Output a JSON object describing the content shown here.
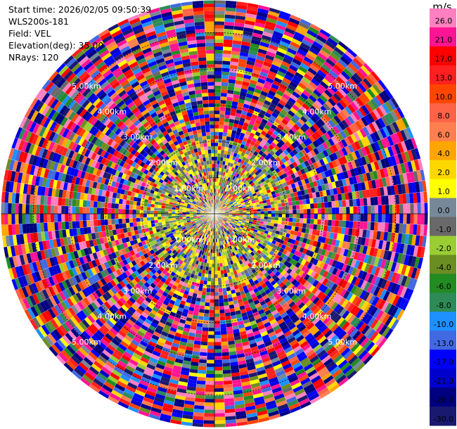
{
  "header": {
    "start_time": "Start time: 2026/02/05 09:50:39",
    "instrument": "WLS200s-181",
    "field": "Field: VEL",
    "elevation": "Elevation(deg): 35.00",
    "nrays": "NRays: 120"
  },
  "chart_data": {
    "type": "heatmap",
    "projection": "polar-ppi",
    "field": "VEL",
    "units": "m/s",
    "n_rays": 120,
    "range_rings_km": [
      1,
      2,
      3,
      4,
      5
    ],
    "range_ring_labels": [
      "1.00km",
      "2.00km",
      "3.00km",
      "4.00km",
      "5.00km"
    ],
    "max_range_km": 5.9,
    "colorbar": {
      "title": "m/s",
      "min": -30.0,
      "max": 30.0,
      "ticks": [
        "26.0",
        "21.0",
        "17.0",
        "13.0",
        "10.0",
        "8.0",
        "6.0",
        "4.0",
        "2.0",
        "1.0",
        "0.0",
        "-1.0",
        "-2.0",
        "-4.0",
        "-6.0",
        "-8.0",
        "-10.0",
        "-13.0",
        "-17.0",
        "-21.0",
        "-26.0",
        "-30.0"
      ],
      "bands": [
        {
          "from": 26,
          "to": 30,
          "color": "#ff80c0"
        },
        {
          "from": 21,
          "to": 26,
          "color": "#ff1493"
        },
        {
          "from": 17,
          "to": 21,
          "color": "#ff0000"
        },
        {
          "from": 13,
          "to": 17,
          "color": "#ff2020"
        },
        {
          "from": 10,
          "to": 13,
          "color": "#ff4500"
        },
        {
          "from": 8,
          "to": 10,
          "color": "#ff6347"
        },
        {
          "from": 6,
          "to": 8,
          "color": "#ff7f50"
        },
        {
          "from": 4,
          "to": 6,
          "color": "#ffa500"
        },
        {
          "from": 2,
          "to": 4,
          "color": "#ffd700"
        },
        {
          "from": 1,
          "to": 2,
          "color": "#ffff00"
        },
        {
          "from": 0,
          "to": 1,
          "color": "#778899"
        },
        {
          "from": -1,
          "to": 0,
          "color": "#696969"
        },
        {
          "from": -2,
          "to": -1,
          "color": "#9acd32"
        },
        {
          "from": -4,
          "to": -2,
          "color": "#6b8e23"
        },
        {
          "from": -6,
          "to": -4,
          "color": "#228b22"
        },
        {
          "from": -8,
          "to": -6,
          "color": "#2e8b57"
        },
        {
          "from": -10,
          "to": -8,
          "color": "#1e90ff"
        },
        {
          "from": -13,
          "to": -10,
          "color": "#4169e1"
        },
        {
          "from": -17,
          "to": -13,
          "color": "#0000ff"
        },
        {
          "from": -21,
          "to": -17,
          "color": "#0000cd"
        },
        {
          "from": -26,
          "to": -21,
          "color": "#000080"
        },
        {
          "from": -30,
          "to": -26,
          "color": "#191970"
        }
      ]
    }
  }
}
